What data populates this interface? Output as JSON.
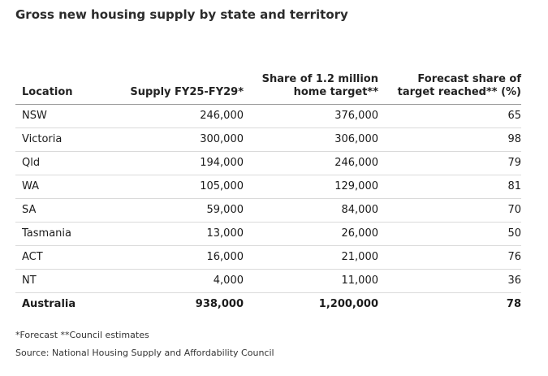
{
  "title": "Gross new housing supply by state and territory",
  "footnote": "*Forecast **Council estimates",
  "source": "Source: National Housing Supply and Affordability Council",
  "chart_data": {
    "type": "table",
    "title": "Gross new housing supply by state and territory",
    "columns": [
      "Location",
      "Supply FY25-FY29*",
      "Share of 1.2 million home target**",
      "Forecast share of target reached** (%)"
    ],
    "rows": [
      [
        "NSW",
        "246,000",
        "376,000",
        "65"
      ],
      [
        "Victoria",
        "300,000",
        "306,000",
        "98"
      ],
      [
        "Qld",
        "194,000",
        "246,000",
        "79"
      ],
      [
        "WA",
        "105,000",
        "129,000",
        "81"
      ],
      [
        "SA",
        "59,000",
        "84,000",
        "70"
      ],
      [
        "Tasmania",
        "13,000",
        "26,000",
        "50"
      ],
      [
        "ACT",
        "16,000",
        "21,000",
        "76"
      ],
      [
        "NT",
        "4,000",
        "11,000",
        "36"
      ]
    ],
    "total": [
      "Australia",
      "938,000",
      "1,200,000",
      "78"
    ]
  }
}
